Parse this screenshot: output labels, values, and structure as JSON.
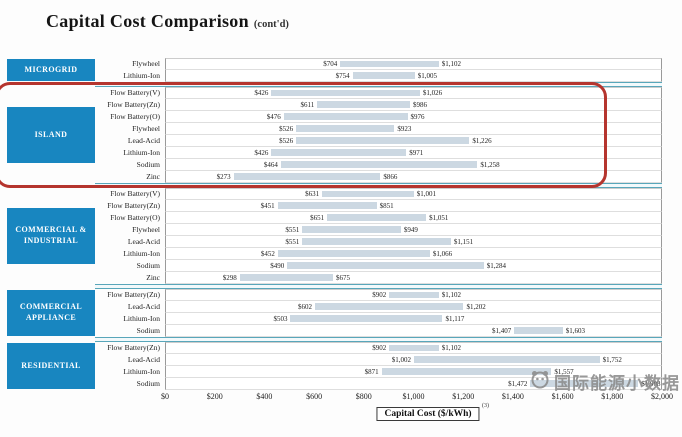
{
  "title": {
    "main": "Capital Cost Comparison",
    "suffix": "(cont'd)"
  },
  "axis": {
    "label": "Capital Cost ($/kWh)",
    "superscript": "(3)",
    "ticks": [
      "$0",
      "$200",
      "$400",
      "$600",
      "$800",
      "$1,000",
      "$1,200",
      "$1,400",
      "$1,600",
      "$1,800",
      "$2,000"
    ],
    "min": 0,
    "max": 2000
  },
  "watermark": {
    "text": "国际能源小数据"
  },
  "colors": {
    "sidebar": "#1886c0",
    "bar": "#ccd8e2",
    "divider": "#58a6ba",
    "highlight": "#b5352e"
  },
  "chart_data": {
    "type": "bar",
    "subtype": "horizontal-range",
    "title": "Capital Cost Comparison (cont'd)",
    "xlabel": "Capital Cost ($/kWh)",
    "xlim": [
      0,
      2000
    ],
    "x_ticks": [
      "$0",
      "$200",
      "$400",
      "$600",
      "$800",
      "$1,000",
      "$1,200",
      "$1,400",
      "$1,600",
      "$1,800",
      "$2,000"
    ],
    "grid": false,
    "legend": false,
    "sections": [
      {
        "name": "MICROGRID",
        "highlighted": false,
        "rows": [
          {
            "label": "Flywheel",
            "min": 704,
            "max": 1102
          },
          {
            "label": "Lithium-Ion",
            "min": 754,
            "max": 1005
          }
        ]
      },
      {
        "name": "ISLAND",
        "highlighted": true,
        "rows": [
          {
            "label": "Flow Battery(V)",
            "min": 426,
            "max": 1026
          },
          {
            "label": "Flow Battery(Zn)",
            "min": 611,
            "max": 986
          },
          {
            "label": "Flow Battery(O)",
            "min": 476,
            "max": 976
          },
          {
            "label": "Flywheel",
            "min": 526,
            "max": 923
          },
          {
            "label": "Lead-Acid",
            "min": 526,
            "max": 1226
          },
          {
            "label": "Lithium-Ion",
            "min": 426,
            "max": 971
          },
          {
            "label": "Sodium",
            "min": 464,
            "max": 1258
          },
          {
            "label": "Zinc",
            "min": 273,
            "max": 866
          }
        ]
      },
      {
        "name": "COMMERCIAL & INDUSTRIAL",
        "highlighted": false,
        "rows": [
          {
            "label": "Flow Battery(V)",
            "min": 631,
            "max": 1001
          },
          {
            "label": "Flow Battery(Zn)",
            "min": 451,
            "max": 851
          },
          {
            "label": "Flow Battery(O)",
            "min": 651,
            "max": 1051
          },
          {
            "label": "Flywheel",
            "min": 551,
            "max": 949
          },
          {
            "label": "Lead-Acid",
            "min": 551,
            "max": 1151
          },
          {
            "label": "Lithium-Ion",
            "min": 452,
            "max": 1066
          },
          {
            "label": "Sodium",
            "min": 490,
            "max": 1284
          },
          {
            "label": "Zinc",
            "min": 298,
            "max": 675
          }
        ]
      },
      {
        "name": "COMMERCIAL APPLIANCE",
        "highlighted": false,
        "rows": [
          {
            "label": "Flow Battery(Zn)",
            "min": 902,
            "max": 1102
          },
          {
            "label": "Lead-Acid",
            "min": 602,
            "max": 1202
          },
          {
            "label": "Lithium-Ion",
            "min": 503,
            "max": 1117
          },
          {
            "label": "Sodium",
            "min": 1407,
            "max": 1603
          }
        ]
      },
      {
        "name": "RESIDENTIAL",
        "highlighted": false,
        "rows": [
          {
            "label": "Flow Battery(Zn)",
            "min": 902,
            "max": 1102
          },
          {
            "label": "Lead-Acid",
            "min": 1002,
            "max": 1752
          },
          {
            "label": "Lithium-Ion",
            "min": 871,
            "max": 1557
          },
          {
            "label": "Sodium",
            "min": 1472,
            "max": 1908
          }
        ]
      }
    ]
  }
}
